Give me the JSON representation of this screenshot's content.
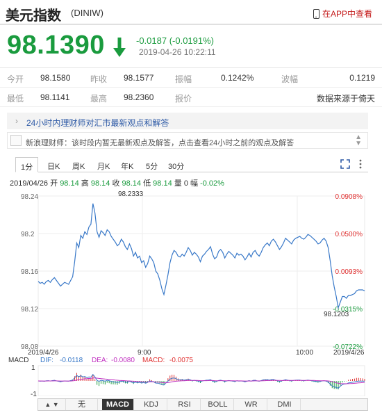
{
  "header": {
    "title": "美元指数",
    "code": "(DINIW)",
    "app_link": "在APP中查看"
  },
  "quote": {
    "price": "98.1390",
    "change": "-0.0187 (-0.0191%)",
    "time": "2019-04-26 10:22:11"
  },
  "stats": [
    [
      {
        "l": "今开",
        "v": "98.1580"
      },
      {
        "l": "昨收",
        "v": "98.1577"
      },
      {
        "l": "振幅",
        "v": "0.1242%"
      },
      {
        "l": "波幅",
        "v": "0.1219"
      }
    ],
    [
      {
        "l": "最低",
        "v": "98.1141"
      },
      {
        "l": "最高",
        "v": "98.2360"
      },
      {
        "l": "报价",
        "v": ""
      },
      {
        "l": "",
        "v": "数据来源于倚天"
      }
    ]
  ],
  "news": {
    "headline": "24小时内理财师对汇市最新观点和解答",
    "reply": "新浪理财师：该时段内暂无最新观点及解答，点击查看24小时之前的观点及解答"
  },
  "tabs": [
    "1分",
    "日K",
    "周K",
    "月K",
    "年K",
    "5分",
    "30分"
  ],
  "bar_info": {
    "date": "2019/04/26",
    "open_l": "开",
    "open": "98.14",
    "high_l": "高",
    "high": "98.14",
    "close_l": "收",
    "close": "98.14",
    "low_l": "低",
    "low": "98.14",
    "vol_l": "量",
    "vol": "0",
    "chg_l": "幅",
    "chg": "-0.02%"
  },
  "chart_data": {
    "type": "line",
    "y_ticks": [
      "98.24",
      "98.2",
      "98.16",
      "98.12",
      "98.08"
    ],
    "pct_ticks": [
      "0.0908%",
      "0.0500%",
      "0.0093%",
      "-0.0315%",
      "-0.0722%"
    ],
    "x_labels": [
      "2019/4/26",
      "9:00",
      "10:00",
      "2019/4/26"
    ],
    "annotations": {
      "high": "98.2333",
      "low": "98.1203"
    },
    "ylim": [
      98.08,
      98.24
    ],
    "x": [
      0,
      3,
      6,
      9,
      12,
      15,
      18,
      21,
      24,
      27,
      30,
      33,
      36,
      39,
      42,
      45,
      48,
      51,
      54,
      57,
      60,
      63,
      66,
      69,
      72,
      75,
      78,
      81,
      84,
      87,
      90,
      93,
      96,
      99,
      102,
      105,
      108,
      111,
      114,
      117,
      120,
      123,
      126,
      129,
      132,
      135,
      138,
      141,
      144,
      147,
      150,
      153,
      156,
      159,
      162,
      165,
      168,
      171,
      174,
      177,
      180,
      183,
      186,
      189,
      192,
      195,
      198,
      201,
      204,
      207,
      210,
      213,
      216,
      219,
      222,
      225,
      228,
      231,
      234,
      237,
      240,
      243,
      246,
      249,
      252,
      255,
      258,
      261,
      264,
      267,
      270,
      273,
      276,
      279,
      282,
      285,
      288,
      291,
      294,
      297,
      300,
      303,
      306,
      309,
      312,
      315,
      318,
      321,
      324,
      327,
      330,
      333,
      336,
      339,
      342,
      345,
      348,
      351,
      354,
      357,
      360,
      363,
      366,
      369,
      372,
      375,
      378,
      381,
      384,
      387,
      390,
      393,
      396,
      399,
      402,
      405,
      408,
      411,
      414,
      417,
      420,
      423,
      426,
      429,
      432,
      435,
      438,
      441,
      444,
      447,
      450,
      453,
      456,
      459,
      462,
      465,
      468,
      471,
      474,
      477,
      480,
      483
    ],
    "values": [
      98.149,
      98.147,
      98.148,
      98.146,
      98.149,
      98.15,
      98.148,
      98.151,
      98.153,
      98.15,
      98.147,
      98.144,
      98.146,
      98.148,
      98.147,
      98.146,
      98.15,
      98.154,
      98.17,
      98.19,
      98.185,
      98.198,
      98.195,
      98.202,
      98.199,
      98.207,
      98.21,
      98.232,
      98.222,
      98.202,
      98.196,
      98.203,
      98.201,
      98.198,
      98.204,
      98.202,
      98.197,
      98.194,
      98.191,
      98.187,
      98.189,
      98.194,
      98.191,
      98.186,
      98.183,
      98.189,
      98.184,
      98.176,
      98.18,
      98.174,
      98.176,
      98.169,
      98.171,
      98.164,
      98.168,
      98.176,
      98.173,
      98.169,
      98.16,
      98.157,
      98.15,
      98.141,
      98.135,
      98.145,
      98.156,
      98.169,
      98.177,
      98.182,
      98.18,
      98.176,
      98.175,
      98.178,
      98.176,
      98.18,
      98.185,
      98.182,
      98.177,
      98.18,
      98.178,
      98.175,
      98.17,
      98.176,
      98.178,
      98.181,
      98.183,
      98.186,
      98.178,
      98.173,
      98.175,
      98.181,
      98.183,
      98.18,
      98.174,
      98.178,
      98.181,
      98.179,
      98.177,
      98.174,
      98.179,
      98.177,
      98.178,
      98.176,
      98.172,
      98.175,
      98.179,
      98.175,
      98.18,
      98.182,
      98.178,
      98.176,
      98.18,
      98.185,
      98.188,
      98.19,
      98.187,
      98.192,
      98.194,
      98.191,
      98.187,
      98.183,
      98.186,
      98.19,
      98.195,
      98.193,
      98.191,
      98.189,
      98.193,
      98.195,
      98.196,
      98.197,
      98.195,
      98.194,
      98.196,
      98.199,
      98.198,
      98.196,
      98.194,
      98.192,
      98.189,
      98.19,
      98.193,
      98.195,
      98.192,
      98.185,
      98.171,
      98.155,
      98.143,
      98.133,
      98.121,
      98.127,
      98.133,
      98.133,
      98.131,
      98.134,
      98.134,
      98.135,
      98.136,
      98.139,
      98.14,
      98.14,
      98.14,
      98.139
    ],
    "macd": {
      "label": "MACD",
      "dif_l": "DIF:",
      "dif": "-0.0118",
      "dea_l": "DEA:",
      "dea": "-0.0080",
      "macd_l": "MACD:",
      "macd": "-0.0075",
      "y_ticks": [
        "1",
        "-1"
      ]
    }
  },
  "bottom_tabs": [
    "无",
    "MACD",
    "KDJ",
    "RSI",
    "BOLL",
    "WR",
    "DMI"
  ],
  "colors": {
    "up": "#e03030",
    "down": "#1a9b3e",
    "line": "#3878c8"
  }
}
